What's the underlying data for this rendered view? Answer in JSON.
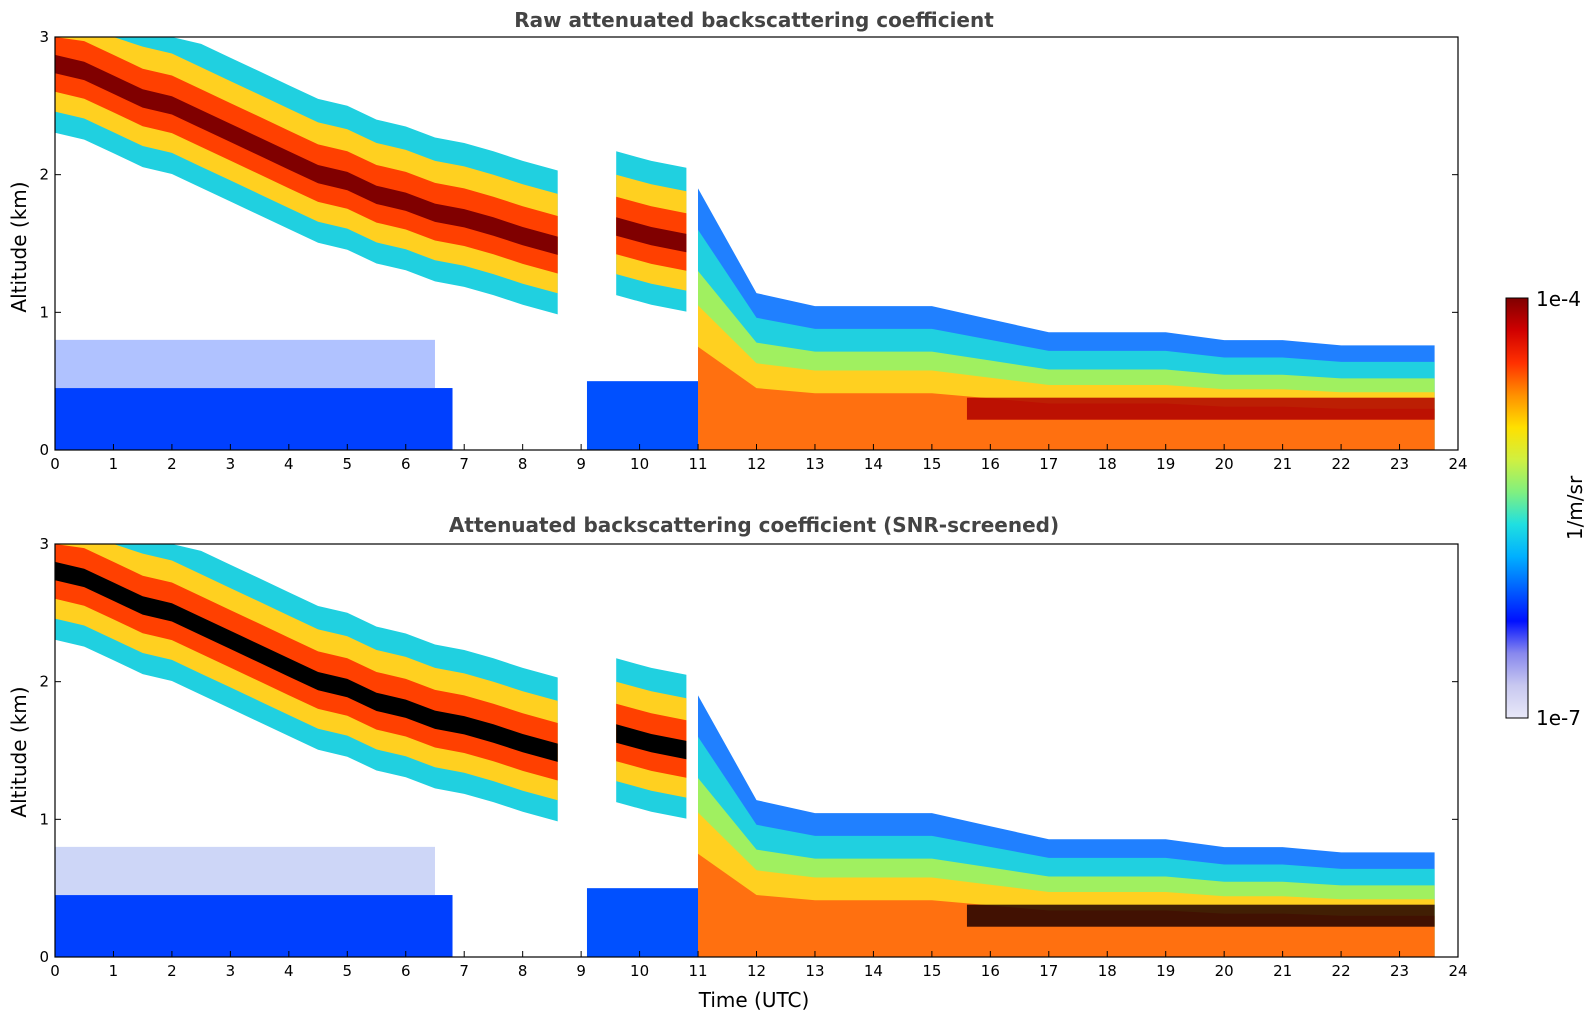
{
  "chart_data": [
    {
      "type": "heatmap",
      "title": "Raw attenuated backscattering coefficient",
      "xlabel": "",
      "ylabel": "Altitude (km)",
      "xlim": [
        0,
        24
      ],
      "ylim": [
        0,
        3
      ],
      "xticks": [
        "0",
        "1",
        "2",
        "3",
        "4",
        "5",
        "6",
        "7",
        "8",
        "9",
        "10",
        "11",
        "12",
        "13",
        "14",
        "15",
        "16",
        "17",
        "18",
        "19",
        "20",
        "21",
        "22",
        "23",
        "24"
      ],
      "yticks": [
        "0",
        "1",
        "2",
        "3"
      ],
      "data_end_hour": 23.6,
      "cloud_layer": [
        {
          "t": 0.0,
          "alt": 2.8
        },
        {
          "t": 0.5,
          "alt": 2.75
        },
        {
          "t": 1.0,
          "alt": 2.65
        },
        {
          "t": 1.5,
          "alt": 2.55
        },
        {
          "t": 2.0,
          "alt": 2.5
        },
        {
          "t": 2.5,
          "alt": 2.4
        },
        {
          "t": 3.0,
          "alt": 2.3
        },
        {
          "t": 3.5,
          "alt": 2.2
        },
        {
          "t": 4.0,
          "alt": 2.1
        },
        {
          "t": 4.5,
          "alt": 2.0
        },
        {
          "t": 5.0,
          "alt": 1.95
        },
        {
          "t": 5.5,
          "alt": 1.85
        },
        {
          "t": 6.0,
          "alt": 1.8
        },
        {
          "t": 6.5,
          "alt": 1.72
        },
        {
          "t": 7.0,
          "alt": 1.68
        },
        {
          "t": 7.5,
          "alt": 1.62
        },
        {
          "t": 8.0,
          "alt": 1.55
        },
        {
          "t": 8.6,
          "alt": 1.48
        }
      ],
      "cloud_layer_2": [
        {
          "t": 9.6,
          "alt": 1.62
        },
        {
          "t": 10.2,
          "alt": 1.55
        },
        {
          "t": 10.8,
          "alt": 1.5
        }
      ],
      "boundary_layer_top": [
        {
          "t": 11.0,
          "alt": 1.0
        },
        {
          "t": 12.0,
          "alt": 0.6
        },
        {
          "t": 13.0,
          "alt": 0.55
        },
        {
          "t": 14.0,
          "alt": 0.55
        },
        {
          "t": 15.0,
          "alt": 0.55
        },
        {
          "t": 16.0,
          "alt": 0.5
        },
        {
          "t": 17.0,
          "alt": 0.45
        },
        {
          "t": 18.0,
          "alt": 0.45
        },
        {
          "t": 19.0,
          "alt": 0.45
        },
        {
          "t": 20.0,
          "alt": 0.42
        },
        {
          "t": 21.0,
          "alt": 0.42
        },
        {
          "t": 22.0,
          "alt": 0.4
        },
        {
          "t": 23.6,
          "alt": 0.4
        }
      ]
    },
    {
      "type": "heatmap",
      "title": "Attenuated backscattering coefficient (SNR-screened)",
      "xlabel": "Time (UTC)",
      "ylabel": "Altitude (km)",
      "xlim": [
        0,
        24
      ],
      "ylim": [
        0,
        3
      ],
      "xticks": [
        "0",
        "1",
        "2",
        "3",
        "4",
        "5",
        "6",
        "7",
        "8",
        "9",
        "10",
        "11",
        "12",
        "13",
        "14",
        "15",
        "16",
        "17",
        "18",
        "19",
        "20",
        "21",
        "22",
        "23",
        "24"
      ],
      "yticks": [
        "0",
        "1",
        "2",
        "3"
      ],
      "data_end_hour": 23.6,
      "cloud_layer": [
        {
          "t": 0.0,
          "alt": 2.8
        },
        {
          "t": 0.5,
          "alt": 2.75
        },
        {
          "t": 1.0,
          "alt": 2.65
        },
        {
          "t": 1.5,
          "alt": 2.55
        },
        {
          "t": 2.0,
          "alt": 2.5
        },
        {
          "t": 2.5,
          "alt": 2.4
        },
        {
          "t": 3.0,
          "alt": 2.3
        },
        {
          "t": 3.5,
          "alt": 2.2
        },
        {
          "t": 4.0,
          "alt": 2.1
        },
        {
          "t": 4.5,
          "alt": 2.0
        },
        {
          "t": 5.0,
          "alt": 1.95
        },
        {
          "t": 5.5,
          "alt": 1.85
        },
        {
          "t": 6.0,
          "alt": 1.8
        },
        {
          "t": 6.5,
          "alt": 1.72
        },
        {
          "t": 7.0,
          "alt": 1.68
        },
        {
          "t": 7.5,
          "alt": 1.62
        },
        {
          "t": 8.0,
          "alt": 1.55
        },
        {
          "t": 8.6,
          "alt": 1.48
        }
      ],
      "cloud_layer_2": [
        {
          "t": 9.6,
          "alt": 1.62
        },
        {
          "t": 10.2,
          "alt": 1.55
        },
        {
          "t": 10.8,
          "alt": 1.5
        }
      ],
      "boundary_layer_top": [
        {
          "t": 11.0,
          "alt": 1.0
        },
        {
          "t": 12.0,
          "alt": 0.6
        },
        {
          "t": 13.0,
          "alt": 0.55
        },
        {
          "t": 14.0,
          "alt": 0.55
        },
        {
          "t": 15.0,
          "alt": 0.55
        },
        {
          "t": 16.0,
          "alt": 0.5
        },
        {
          "t": 17.0,
          "alt": 0.45
        },
        {
          "t": 18.0,
          "alt": 0.45
        },
        {
          "t": 19.0,
          "alt": 0.45
        },
        {
          "t": 20.0,
          "alt": 0.42
        },
        {
          "t": 21.0,
          "alt": 0.42
        },
        {
          "t": 22.0,
          "alt": 0.4
        },
        {
          "t": 23.6,
          "alt": 0.4
        }
      ]
    }
  ],
  "colorbar": {
    "label": "1/m/sr",
    "min_label": "1e-7",
    "max_label": "1e-4",
    "colormap": [
      "#e8e8f8",
      "#c8c8f0",
      "#8888ee",
      "#0010ff",
      "#0060ff",
      "#00b0ff",
      "#20e0e0",
      "#80f080",
      "#d0f040",
      "#ffe000",
      "#ff9000",
      "#ff3000",
      "#d00000",
      "#800000"
    ]
  }
}
